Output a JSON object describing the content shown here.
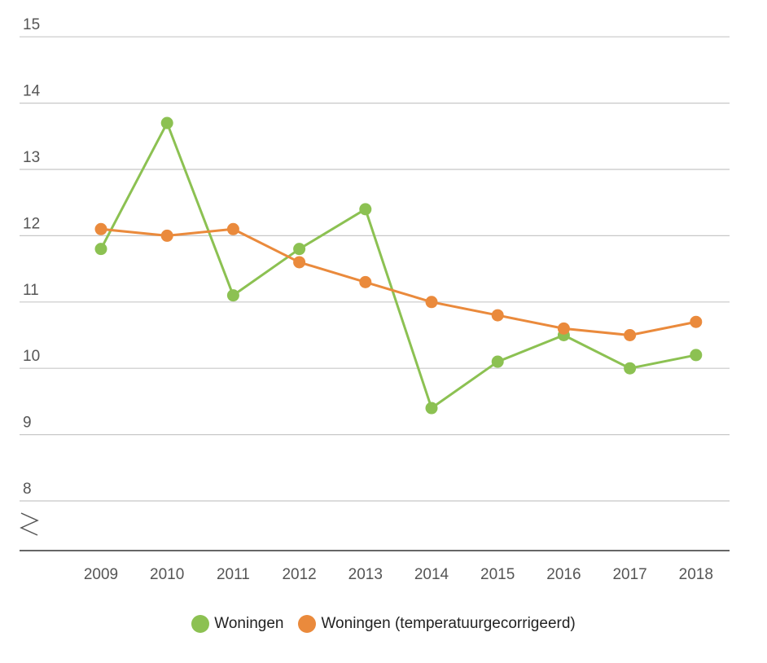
{
  "chart_data": {
    "type": "line",
    "categories": [
      "2009",
      "2010",
      "2011",
      "2012",
      "2013",
      "2014",
      "2015",
      "2016",
      "2017",
      "2018"
    ],
    "series": [
      {
        "name": "Woningen",
        "color": "#8cc152",
        "values": [
          11.8,
          13.7,
          11.1,
          11.8,
          12.4,
          9.4,
          10.1,
          10.5,
          10.0,
          10.2
        ]
      },
      {
        "name": "Woningen (temperatuurgecorrigeerd)",
        "color": "#ea8a3c",
        "values": [
          12.1,
          12.0,
          12.1,
          11.6,
          11.3,
          11.0,
          10.8,
          10.6,
          10.5,
          10.7
        ]
      }
    ],
    "yticks": [
      "8",
      "9",
      "10",
      "11",
      "12",
      "13",
      "14",
      "15"
    ],
    "ylim": [
      8,
      15
    ],
    "axis_break": true,
    "grid": true,
    "legend_position": "bottom-center"
  }
}
